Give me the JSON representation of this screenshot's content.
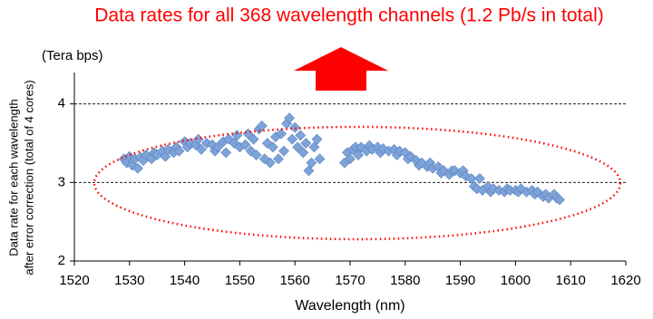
{
  "chart_data": {
    "type": "scatter",
    "title": "Data rates for all 368 wavelength channels (1.2 Pb/s in total)",
    "y_unit": "(Tera bps)",
    "y_label": [
      "Data rate for each wavelength",
      "after error correction (total of 4 cores)"
    ],
    "x_label": "Wavelength (nm)",
    "color": "#7ea3d8",
    "grid": true,
    "xlim": [
      1520,
      1620
    ],
    "xticks": [
      1520,
      1530,
      1540,
      1550,
      1560,
      1570,
      1580,
      1590,
      1600,
      1610,
      1620
    ],
    "ylim": [
      2,
      4.4
    ],
    "yticks": [
      2,
      3,
      4
    ],
    "x": [
      1529,
      1529.5,
      1530,
      1530.5,
      1531,
      1531.5,
      1532,
      1532.5,
      1533,
      1534,
      1534.5,
      1535,
      1536,
      1536.5,
      1537,
      1538,
      1538.5,
      1539,
      1540,
      1540.5,
      1541,
      1542,
      1542.5,
      1543,
      1544,
      1545,
      1545.5,
      1546,
      1547,
      1547.5,
      1548,
      1549,
      1549.5,
      1550,
      1551,
      1551.5,
      1552,
      1552.5,
      1553,
      1553.5,
      1554,
      1554.5,
      1555,
      1555.5,
      1556,
      1556.5,
      1557,
      1557.5,
      1558,
      1558.5,
      1559,
      1559.5,
      1560,
      1560.5,
      1561,
      1561.5,
      1562,
      1562.5,
      1563,
      1563.5,
      1564,
      1564.5,
      1569,
      1569.5,
      1570,
      1570.5,
      1571,
      1571.5,
      1572,
      1573,
      1573.5,
      1574,
      1575,
      1575.5,
      1576,
      1577,
      1578,
      1578.5,
      1579,
      1580,
      1580.5,
      1581,
      1582,
      1582.5,
      1583,
      1584,
      1584.5,
      1585,
      1586,
      1586.5,
      1587,
      1588,
      1588.5,
      1589,
      1590,
      1590.5,
      1591,
      1592,
      1592.5,
      1593,
      1593.5,
      1594,
      1595,
      1595.5,
      1596,
      1597,
      1598,
      1598.5,
      1599,
      1600,
      1600.5,
      1601,
      1602,
      1603,
      1603.5,
      1604,
      1605,
      1605.5,
      1606,
      1607,
      1607.5,
      1608
    ],
    "y": [
      3.3,
      3.25,
      3.33,
      3.22,
      3.3,
      3.18,
      3.32,
      3.28,
      3.35,
      3.3,
      3.38,
      3.35,
      3.4,
      3.33,
      3.42,
      3.38,
      3.45,
      3.4,
      3.52,
      3.45,
      3.5,
      3.48,
      3.55,
      3.42,
      3.5,
      3.48,
      3.4,
      3.45,
      3.52,
      3.38,
      3.55,
      3.5,
      3.6,
      3.45,
      3.48,
      3.62,
      3.4,
      3.55,
      3.35,
      3.68,
      3.72,
      3.3,
      3.5,
      3.25,
      3.45,
      3.58,
      3.3,
      3.62,
      3.4,
      3.75,
      3.82,
      3.55,
      3.7,
      3.45,
      3.6,
      3.38,
      3.5,
      3.15,
      3.25,
      3.45,
      3.55,
      3.3,
      3.25,
      3.38,
      3.3,
      3.42,
      3.45,
      3.35,
      3.45,
      3.4,
      3.47,
      3.42,
      3.45,
      3.38,
      3.43,
      3.4,
      3.42,
      3.35,
      3.4,
      3.38,
      3.3,
      3.33,
      3.28,
      3.22,
      3.25,
      3.2,
      3.25,
      3.18,
      3.2,
      3.12,
      3.15,
      3.1,
      3.15,
      3.15,
      3.12,
      3.15,
      3.08,
      3.05,
      2.95,
      2.92,
      3.05,
      2.9,
      2.95,
      2.88,
      2.92,
      2.9,
      2.88,
      2.92,
      2.9,
      2.9,
      2.88,
      2.92,
      2.88,
      2.9,
      2.85,
      2.88,
      2.82,
      2.85,
      2.8,
      2.85,
      2.8,
      2.78
    ]
  }
}
